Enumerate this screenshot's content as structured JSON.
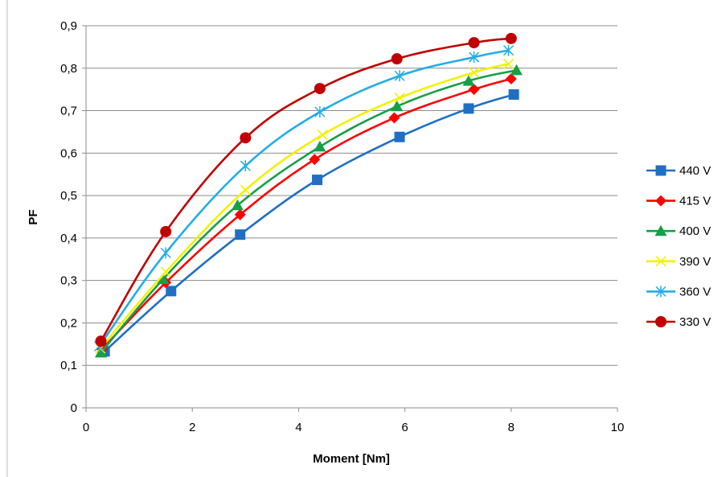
{
  "chart_data": {
    "type": "line",
    "title": "",
    "xlabel": "Moment [Nm]",
    "ylabel": "PF",
    "xlim": [
      0,
      10
    ],
    "ylim": [
      0,
      0.9
    ],
    "x_ticks": [
      0,
      2,
      4,
      6,
      8,
      10
    ],
    "y_ticks": [
      0,
      0.1,
      0.2,
      0.3,
      0.4,
      0.5,
      0.6,
      0.7,
      0.8,
      0.9
    ],
    "x_tick_labels": [
      "0",
      "2",
      "4",
      "6",
      "8",
      "10"
    ],
    "y_tick_labels": [
      "0",
      "0,1",
      "0,2",
      "0,3",
      "0,4",
      "0,5",
      "0,6",
      "0,7",
      "0,8",
      "0,9"
    ],
    "grid": "horizontal",
    "legend_position": "right",
    "series": [
      {
        "name": "440 V",
        "color": "#1F6FC4",
        "marker": "square",
        "points": [
          [
            0.35,
            0.133
          ],
          [
            1.6,
            0.275
          ],
          [
            2.9,
            0.408
          ],
          [
            4.35,
            0.537
          ],
          [
            5.9,
            0.638
          ],
          [
            7.2,
            0.705
          ],
          [
            8.05,
            0.738
          ]
        ]
      },
      {
        "name": "415 V",
        "color": "#FF0000",
        "marker": "diamond",
        "points": [
          [
            0.3,
            0.138
          ],
          [
            1.5,
            0.295
          ],
          [
            2.9,
            0.455
          ],
          [
            4.3,
            0.585
          ],
          [
            5.8,
            0.683
          ],
          [
            7.3,
            0.75
          ],
          [
            8.0,
            0.775
          ]
        ]
      },
      {
        "name": "400 V",
        "color": "#14A046",
        "marker": "triangle",
        "points": [
          [
            0.28,
            0.13
          ],
          [
            1.45,
            0.303
          ],
          [
            2.85,
            0.477
          ],
          [
            4.4,
            0.615
          ],
          [
            5.85,
            0.71
          ],
          [
            7.2,
            0.77
          ],
          [
            8.1,
            0.795
          ]
        ]
      },
      {
        "name": "390 V",
        "color": "#F2F200",
        "marker": "x",
        "points": [
          [
            0.27,
            0.14
          ],
          [
            1.5,
            0.32
          ],
          [
            3.0,
            0.513
          ],
          [
            4.45,
            0.643
          ],
          [
            5.9,
            0.73
          ],
          [
            7.3,
            0.79
          ],
          [
            7.95,
            0.81
          ]
        ]
      },
      {
        "name": "360 V",
        "color": "#22AEE6",
        "marker": "star",
        "points": [
          [
            0.25,
            0.145
          ],
          [
            1.5,
            0.365
          ],
          [
            3.0,
            0.57
          ],
          [
            4.4,
            0.697
          ],
          [
            5.9,
            0.782
          ],
          [
            7.3,
            0.826
          ],
          [
            7.95,
            0.842
          ]
        ]
      },
      {
        "name": "330 V",
        "color": "#C00000",
        "marker": "circle",
        "points": [
          [
            0.28,
            0.157
          ],
          [
            1.5,
            0.415
          ],
          [
            3.0,
            0.636
          ],
          [
            4.4,
            0.752
          ],
          [
            5.85,
            0.822
          ],
          [
            7.3,
            0.86
          ],
          [
            8.0,
            0.87
          ]
        ]
      }
    ]
  }
}
